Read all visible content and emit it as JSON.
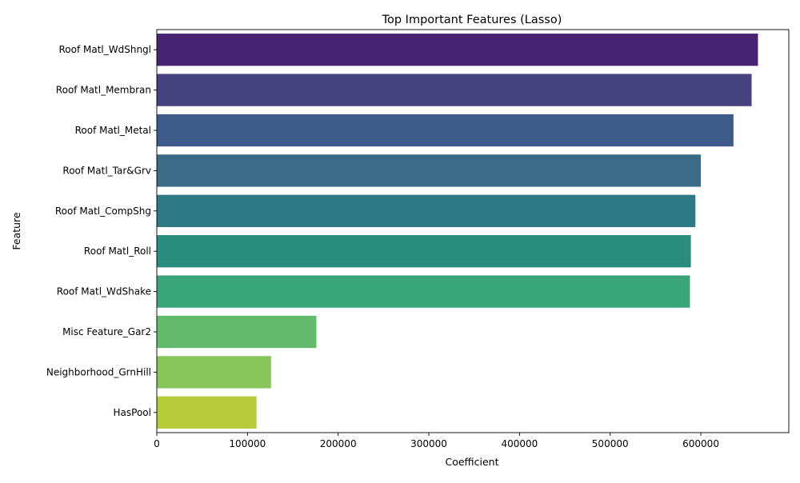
{
  "chart_data": {
    "type": "bar",
    "orientation": "horizontal",
    "title": "Top Important Features (Lasso)",
    "xlabel": "Coefficient",
    "ylabel": "Feature",
    "categories": [
      "Roof Matl_WdShngl",
      "Roof Matl_Membran",
      "Roof Matl_Metal",
      "Roof Matl_Tar&Grv",
      "Roof Matl_CompShg",
      "Roof Matl_Roll",
      "Roof Matl_WdShake",
      "Misc Feature_Gar2",
      "Neighborhood_GrnHill",
      "HasPool"
    ],
    "values": [
      663000,
      656000,
      636000,
      600000,
      594000,
      589000,
      588000,
      176000,
      126000,
      110000
    ],
    "colors": [
      "#482374",
      "#46427f",
      "#3e5a8a",
      "#3a6b87",
      "#2d7a84",
      "#2a8c7e",
      "#3aa57a",
      "#62bb6d",
      "#86c65b",
      "#b5cb38"
    ],
    "xlim": [
      0,
      697000
    ],
    "xticks": [
      0,
      100000,
      200000,
      300000,
      400000,
      500000,
      600000
    ],
    "xtick_labels": [
      "0",
      "100000",
      "200000",
      "300000",
      "400000",
      "500000",
      "600000"
    ],
    "grid": false,
    "legend": "none"
  }
}
